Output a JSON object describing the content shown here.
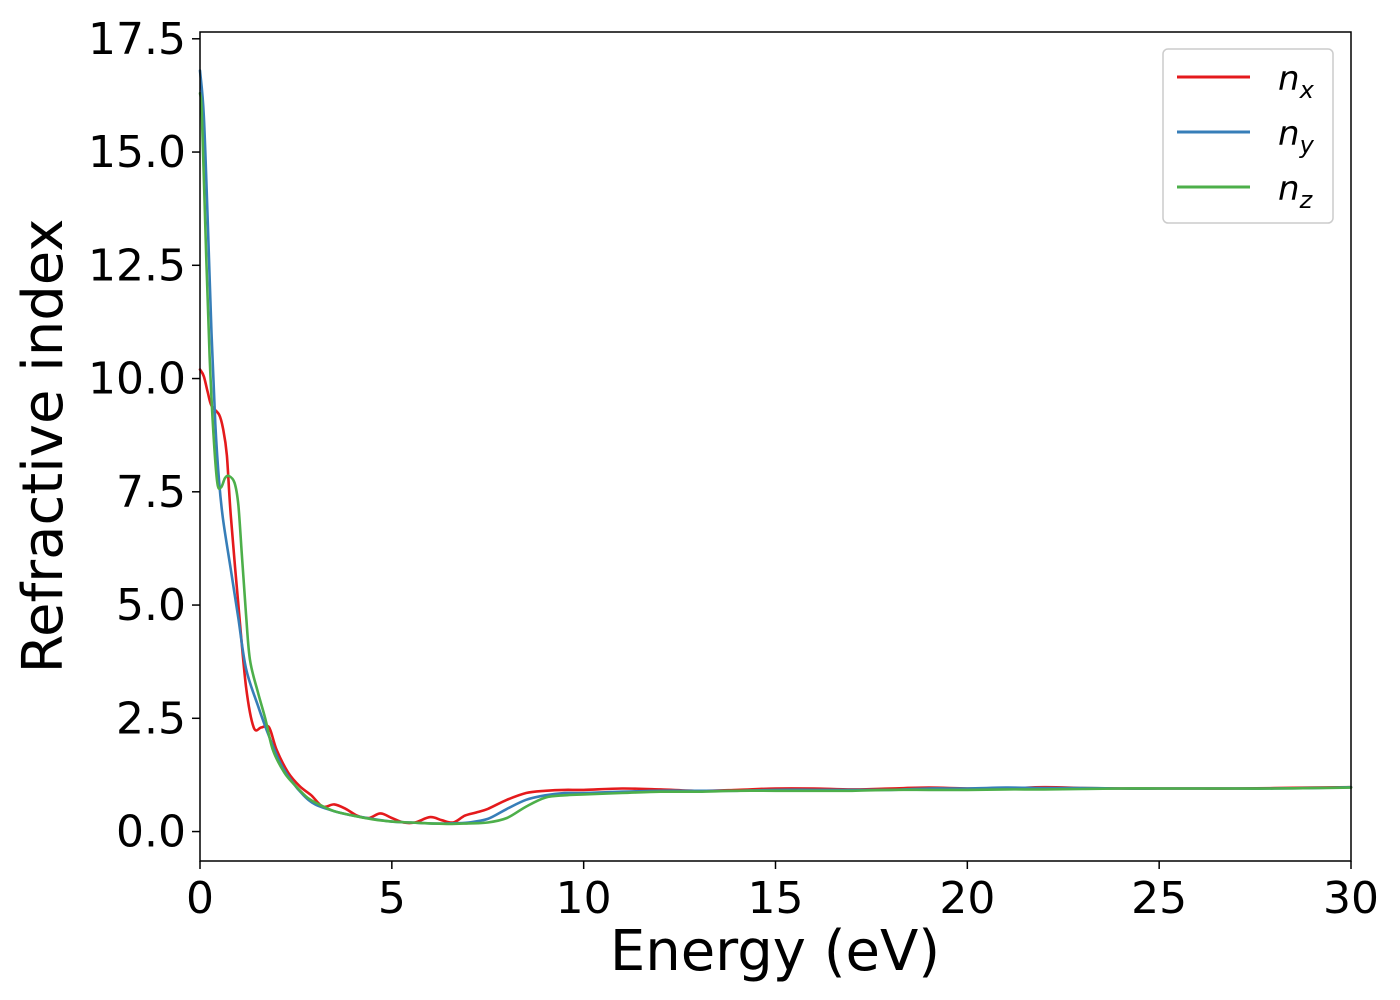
{
  "chart_data": {
    "type": "line",
    "title": "",
    "xlabel": "Energy (eV)",
    "ylabel": "Refractive index",
    "xlim": [
      0,
      30
    ],
    "ylim": [
      -0.65,
      17.65
    ],
    "xticks": [
      0,
      5,
      10,
      15,
      20,
      25,
      30
    ],
    "xtick_labels": [
      "0",
      "5",
      "10",
      "15",
      "20",
      "25",
      "30"
    ],
    "yticks": [
      0,
      2.5,
      5,
      7.5,
      10,
      12.5,
      15,
      17.5
    ],
    "ytick_labels": [
      "0.0",
      "2.5",
      "5.0",
      "7.5",
      "10.0",
      "12.5",
      "15.0",
      "17.5"
    ],
    "grid": false,
    "legend_position": "top-right",
    "series": [
      {
        "name": "n",
        "subscript": "x",
        "color": "#e41a1c",
        "x": [
          0,
          0.1,
          0.2,
          0.3,
          0.5,
          0.6,
          0.7,
          0.8,
          1.0,
          1.2,
          1.4,
          1.6,
          1.8,
          2.0,
          2.3,
          2.6,
          2.9,
          3.2,
          3.5,
          3.8,
          4.1,
          4.4,
          4.7,
          5.0,
          5.3,
          5.6,
          6.0,
          6.3,
          6.6,
          6.9,
          7.2,
          7.5,
          8.0,
          8.5,
          9.0,
          9.5,
          10,
          11,
          12,
          13,
          14,
          15,
          16,
          17,
          18,
          19,
          20,
          21,
          22,
          23,
          24,
          25,
          26,
          27,
          28,
          29,
          30
        ],
        "y": [
          10.2,
          10.05,
          9.7,
          9.4,
          9.2,
          8.9,
          8.3,
          7.0,
          5.0,
          3.2,
          2.3,
          2.3,
          2.3,
          1.8,
          1.3,
          1.0,
          0.8,
          0.55,
          0.6,
          0.5,
          0.35,
          0.3,
          0.4,
          0.3,
          0.2,
          0.2,
          0.32,
          0.25,
          0.2,
          0.35,
          0.42,
          0.5,
          0.7,
          0.85,
          0.9,
          0.92,
          0.92,
          0.95,
          0.93,
          0.9,
          0.92,
          0.95,
          0.95,
          0.93,
          0.95,
          0.97,
          0.95,
          0.95,
          0.98,
          0.96,
          0.95,
          0.95,
          0.95,
          0.95,
          0.96,
          0.97,
          0.98
        ]
      },
      {
        "name": "n",
        "subscript": "y",
        "color": "#377eb8",
        "x": [
          0,
          0.1,
          0.2,
          0.3,
          0.4,
          0.5,
          0.6,
          0.8,
          1.0,
          1.2,
          1.5,
          1.8,
          2.1,
          2.4,
          2.7,
          3.0,
          3.5,
          4.0,
          4.5,
          5.0,
          5.5,
          6.0,
          6.5,
          7.0,
          7.5,
          8.0,
          8.5,
          9.0,
          9.5,
          10,
          11,
          12,
          13,
          14,
          15,
          16,
          17,
          18,
          19,
          20,
          21,
          22,
          23,
          24,
          25,
          26,
          27,
          28,
          29,
          30
        ],
        "y": [
          16.8,
          15.8,
          13.5,
          11.0,
          9.0,
          7.7,
          6.9,
          5.8,
          4.7,
          3.6,
          2.8,
          2.1,
          1.5,
          1.1,
          0.8,
          0.6,
          0.45,
          0.35,
          0.28,
          0.22,
          0.2,
          0.18,
          0.18,
          0.2,
          0.28,
          0.5,
          0.7,
          0.8,
          0.85,
          0.85,
          0.88,
          0.9,
          0.9,
          0.9,
          0.92,
          0.92,
          0.92,
          0.92,
          0.95,
          0.95,
          0.97,
          0.96,
          0.96,
          0.95,
          0.95,
          0.95,
          0.95,
          0.95,
          0.96,
          0.98
        ]
      },
      {
        "name": "n",
        "subscript": "z",
        "color": "#4daf4a",
        "x": [
          0,
          0.05,
          0.15,
          0.25,
          0.35,
          0.45,
          0.55,
          0.65,
          0.75,
          0.9,
          1.0,
          1.1,
          1.2,
          1.3,
          1.5,
          1.7,
          1.9,
          2.2,
          2.5,
          2.8,
          3.1,
          3.5,
          4.0,
          4.5,
          5.0,
          5.5,
          6.0,
          6.5,
          7.0,
          7.5,
          8.0,
          8.5,
          9.0,
          9.5,
          10,
          11,
          12,
          13,
          14,
          15,
          16,
          17,
          18,
          19,
          20,
          21,
          22,
          23,
          24,
          25,
          26,
          27,
          28,
          29,
          30
        ],
        "y": [
          16.3,
          15.8,
          13.0,
          10.5,
          8.8,
          7.7,
          7.6,
          7.8,
          7.85,
          7.7,
          7.2,
          6.0,
          4.8,
          3.8,
          3.1,
          2.5,
          1.8,
          1.3,
          1.0,
          0.75,
          0.6,
          0.45,
          0.35,
          0.27,
          0.22,
          0.2,
          0.18,
          0.17,
          0.18,
          0.2,
          0.3,
          0.55,
          0.75,
          0.8,
          0.82,
          0.85,
          0.88,
          0.88,
          0.9,
          0.9,
          0.9,
          0.9,
          0.92,
          0.92,
          0.92,
          0.93,
          0.93,
          0.94,
          0.95,
          0.95,
          0.95,
          0.95,
          0.95,
          0.96,
          0.97
        ]
      }
    ]
  }
}
